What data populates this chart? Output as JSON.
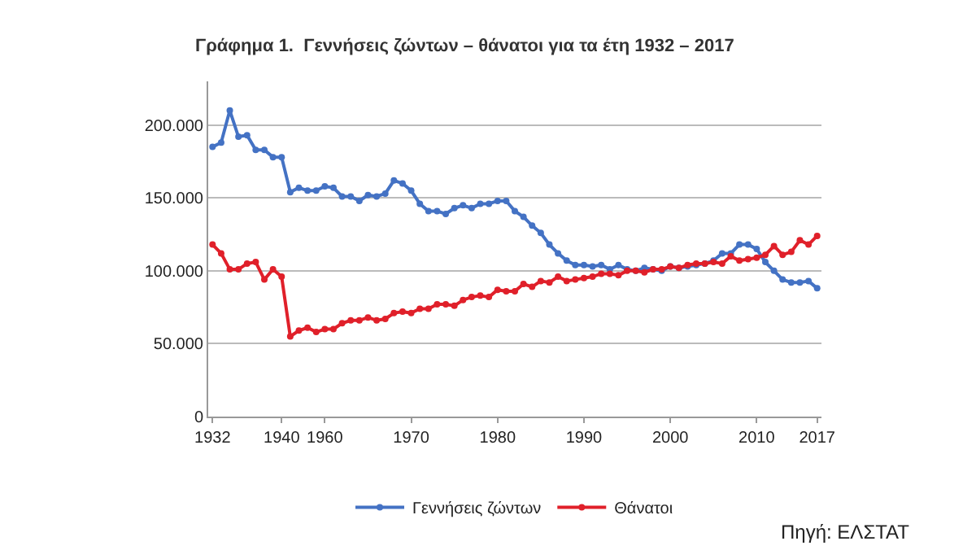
{
  "chart_data": {
    "type": "line",
    "title": "Γράφημα 1.  Γεννήσεις ζώντων – θάνατοι για τα έτη 1932 – 2017",
    "categories": [
      "1932",
      null,
      null,
      null,
      null,
      null,
      null,
      null,
      "1940",
      null,
      null,
      null,
      null,
      "1960",
      null,
      null,
      null,
      null,
      null,
      null,
      null,
      null,
      null,
      "1970",
      null,
      null,
      null,
      null,
      null,
      null,
      null,
      null,
      null,
      "1980",
      null,
      null,
      null,
      null,
      null,
      null,
      null,
      null,
      null,
      "1990",
      null,
      null,
      null,
      null,
      null,
      null,
      null,
      null,
      null,
      "2000",
      null,
      null,
      null,
      null,
      null,
      null,
      null,
      null,
      null,
      "2010",
      null,
      null,
      null,
      null,
      null,
      null,
      "2017"
    ],
    "series": [
      {
        "name": "Γεννήσεις ζώντων",
        "color": "#4472c4",
        "values": [
          185000,
          188000,
          210000,
          192000,
          193000,
          183000,
          183000,
          178000,
          178000,
          154000,
          157000,
          155000,
          155000,
          158000,
          157000,
          151000,
          151000,
          148000,
          152000,
          151000,
          153000,
          162000,
          160000,
          155000,
          146000,
          141000,
          141000,
          139000,
          143000,
          145000,
          143000,
          146000,
          146000,
          148000,
          148000,
          141000,
          137000,
          131000,
          126000,
          118000,
          112000,
          107000,
          104000,
          104000,
          103000,
          104000,
          101000,
          104000,
          101000,
          100000,
          102000,
          101000,
          100000,
          103000,
          102000,
          103000,
          104000,
          105000,
          107000,
          112000,
          112000,
          118000,
          118000,
          115000,
          106000,
          100000,
          94000,
          92000,
          92000,
          93000,
          88000
        ]
      },
      {
        "name": "Θάνατοι",
        "color": "#e0202a",
        "values": [
          118000,
          112000,
          101000,
          101000,
          105000,
          106000,
          94000,
          101000,
          96000,
          55000,
          59000,
          61000,
          58000,
          60000,
          60000,
          64000,
          66000,
          66000,
          68000,
          66000,
          67000,
          71000,
          72000,
          71000,
          74000,
          74000,
          77000,
          77000,
          76000,
          80000,
          82000,
          83000,
          82000,
          87000,
          86000,
          86000,
          91000,
          89000,
          93000,
          92000,
          96000,
          93000,
          94000,
          95000,
          96000,
          98000,
          98000,
          97000,
          100000,
          100000,
          99000,
          101000,
          101000,
          103000,
          102000,
          104000,
          105000,
          105000,
          106000,
          105000,
          110000,
          107000,
          108000,
          109000,
          111000,
          117000,
          111000,
          113000,
          121000,
          118000,
          124000
        ]
      }
    ],
    "ylim": [
      0,
      230000
    ],
    "yticks": [
      {
        "value": 0,
        "label": "0"
      },
      {
        "value": 50000,
        "label": "50.000"
      },
      {
        "value": 100000,
        "label": "100.000"
      },
      {
        "value": 150000,
        "label": "150.000"
      },
      {
        "value": 200000,
        "label": "200.000"
      }
    ],
    "grid": "y",
    "legend": "bottom",
    "marker": "circle",
    "line_style": "solid",
    "annotations": [
      "Πηγή: ΕΛΣΤΑΤ"
    ]
  }
}
